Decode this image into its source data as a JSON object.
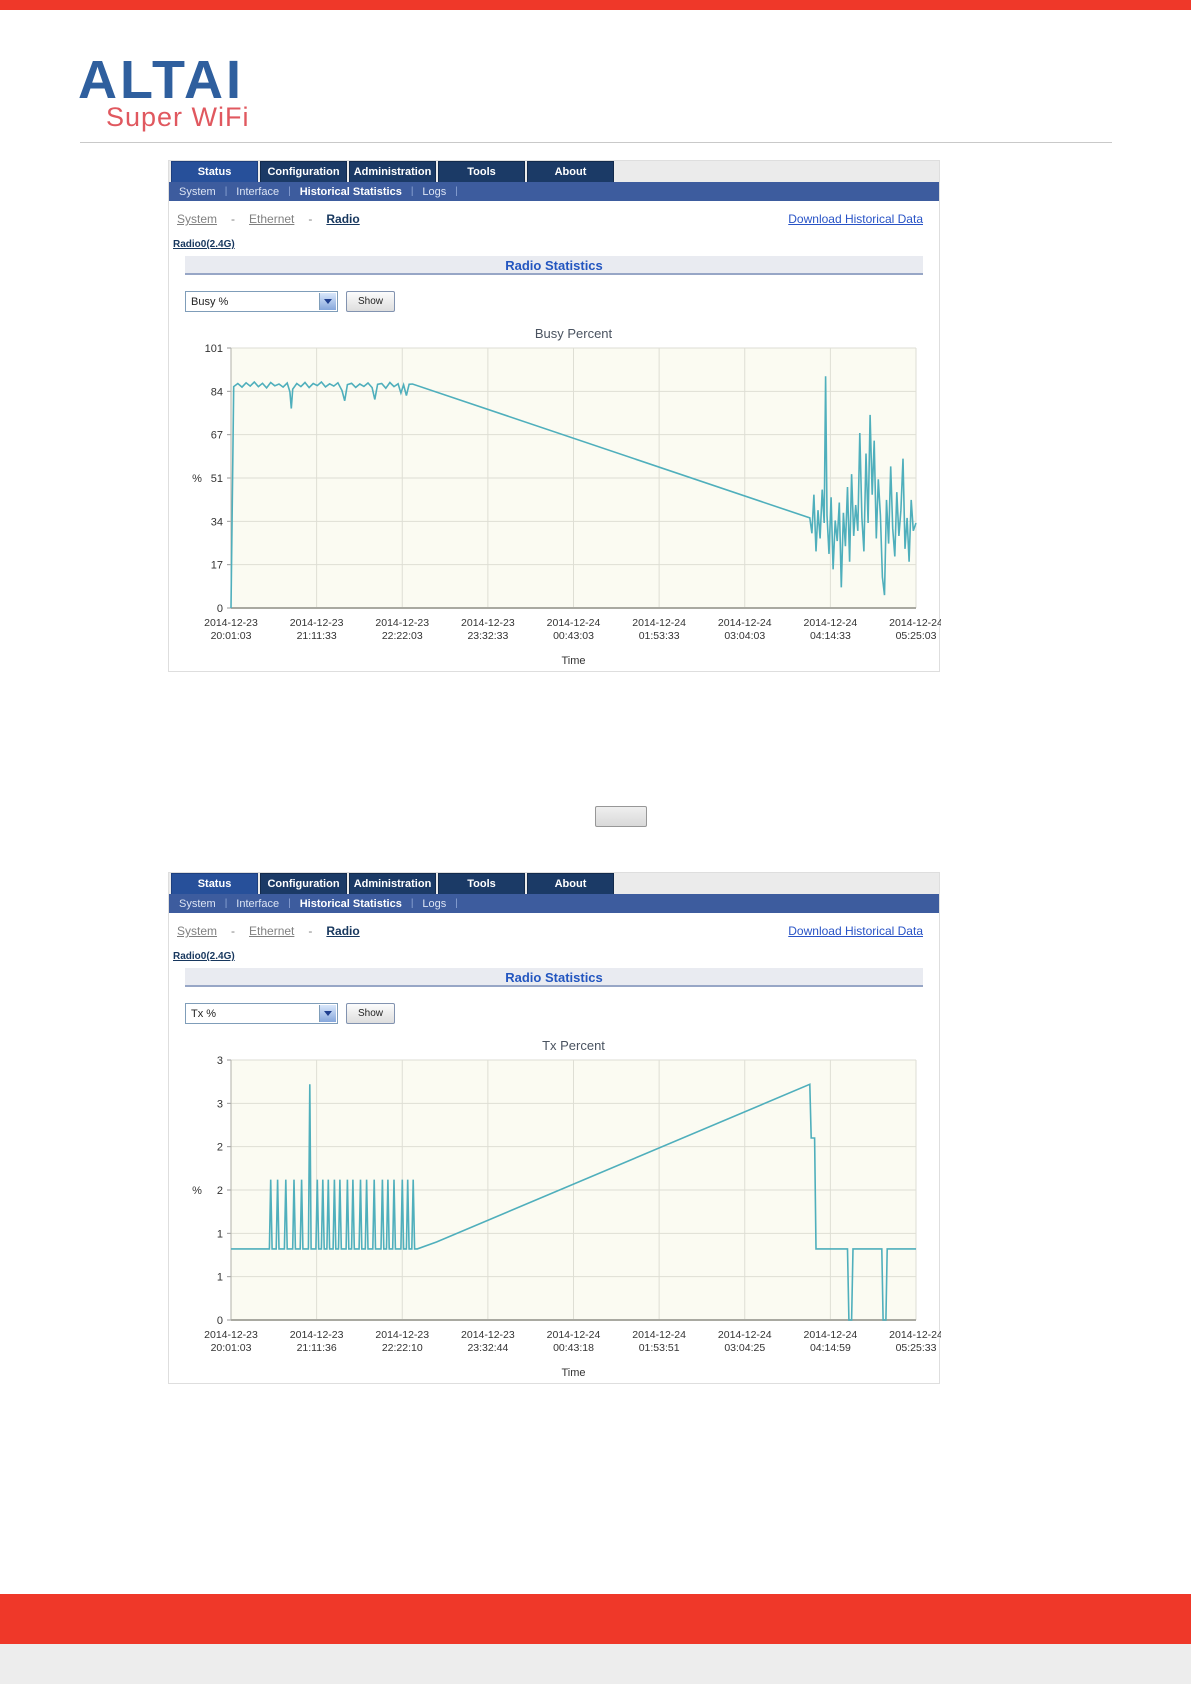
{
  "brand": {
    "logo_title": "ALTAI",
    "logo_subtitle": "Super WiFi",
    "logo_blue": "#2F5F9E",
    "logo_red": "#E0585F",
    "bar_red": "#EF3829"
  },
  "placeholder_button": {
    "label": ""
  },
  "panels": [
    {
      "tabs": [
        "Status",
        "Configuration",
        "Administration",
        "Tools",
        "About"
      ],
      "active_tab": "Status",
      "subnav": [
        "System",
        "Interface",
        "Historical Statistics",
        "Logs"
      ],
      "active_subnav": "Historical Statistics",
      "subnav_separator": "|",
      "breadcrumb": [
        "System",
        "Ethernet",
        "Radio"
      ],
      "breadcrumb_separator": "-",
      "download_link": "Download Historical Data",
      "radio_link": "Radio0(2.4G)",
      "section_title": "Radio Statistics",
      "metric_value": "Busy %",
      "show_label": "Show"
    },
    {
      "tabs": [
        "Status",
        "Configuration",
        "Administration",
        "Tools",
        "About"
      ],
      "active_tab": "Status",
      "subnav": [
        "System",
        "Interface",
        "Historical Statistics",
        "Logs"
      ],
      "active_subnav": "Historical Statistics",
      "subnav_separator": "|",
      "breadcrumb": [
        "System",
        "Ethernet",
        "Radio"
      ],
      "breadcrumb_separator": "-",
      "download_link": "Download Historical Data",
      "radio_link": "Radio0(2.4G)",
      "section_title": "Radio Statistics",
      "metric_value": "Tx %",
      "show_label": "Show"
    }
  ],
  "chart_data": [
    {
      "type": "line",
      "title": "Busy Percent",
      "xlabel": "Time",
      "ylabel": "%",
      "ylim": [
        0,
        101
      ],
      "grid": true,
      "legend": "none",
      "plot_bg": "#FBFBF2",
      "grid_color": "#DEDED4",
      "line_color": "#4FAFBC",
      "yticks": {
        "values": [
          101,
          84,
          67,
          51,
          34,
          17,
          0
        ],
        "labels": [
          "101",
          "84",
          "67",
          "51",
          "34",
          "17",
          "0"
        ]
      },
      "categories": [
        "2014-12-23 20:01:03",
        "2014-12-23 21:11:33",
        "2014-12-23 22:22:03",
        "2014-12-23 23:32:33",
        "2014-12-24 00:43:03",
        "2014-12-24 01:53:33",
        "2014-12-24 03:04:03",
        "2014-12-24 04:14:33",
        "2014-12-24 05:25:03"
      ],
      "series": [
        {
          "name": "Busy %",
          "points": [
            [
              0,
              0
            ],
            [
              0.004,
              86
            ],
            [
              0.01,
              87.2
            ],
            [
              0.016,
              85.8
            ],
            [
              0.022,
              87.5
            ],
            [
              0.028,
              86.2
            ],
            [
              0.034,
              87.8
            ],
            [
              0.04,
              86
            ],
            [
              0.046,
              87.3
            ],
            [
              0.052,
              85.5
            ],
            [
              0.058,
              87.6
            ],
            [
              0.064,
              86.3
            ],
            [
              0.07,
              87
            ],
            [
              0.076,
              85.8
            ],
            [
              0.082,
              87.4
            ],
            [
              0.086,
              84
            ],
            [
              0.088,
              77.5
            ],
            [
              0.09,
              85
            ],
            [
              0.096,
              87.2
            ],
            [
              0.102,
              86
            ],
            [
              0.108,
              87.6
            ],
            [
              0.114,
              85.6
            ],
            [
              0.12,
              87.2
            ],
            [
              0.126,
              86.4
            ],
            [
              0.132,
              87.8
            ],
            [
              0.138,
              85.9
            ],
            [
              0.144,
              87.1
            ],
            [
              0.15,
              86.2
            ],
            [
              0.156,
              87.5
            ],
            [
              0.162,
              84.5
            ],
            [
              0.166,
              80.5
            ],
            [
              0.17,
              86.8
            ],
            [
              0.176,
              87.3
            ],
            [
              0.182,
              85.7
            ],
            [
              0.188,
              87
            ],
            [
              0.194,
              86.1
            ],
            [
              0.2,
              87.4
            ],
            [
              0.206,
              85.6
            ],
            [
              0.21,
              81
            ],
            [
              0.214,
              86.9
            ],
            [
              0.22,
              87.2
            ],
            [
              0.226,
              85.4
            ],
            [
              0.232,
              87.6
            ],
            [
              0.238,
              86
            ],
            [
              0.244,
              87.1
            ],
            [
              0.248,
              83.5
            ],
            [
              0.252,
              86.7
            ],
            [
              0.256,
              82.5
            ],
            [
              0.26,
              86.9
            ],
            [
              0.265,
              87
            ],
            [
              0.845,
              35
            ],
            [
              0.848,
              29
            ],
            [
              0.851,
              44
            ],
            [
              0.854,
              22
            ],
            [
              0.857,
              38
            ],
            [
              0.86,
              27
            ],
            [
              0.863,
              46
            ],
            [
              0.866,
              33
            ],
            [
              0.868,
              90
            ],
            [
              0.87,
              36
            ],
            [
              0.873,
              21
            ],
            [
              0.876,
              43
            ],
            [
              0.879,
              15
            ],
            [
              0.882,
              34
            ],
            [
              0.885,
              26
            ],
            [
              0.888,
              41
            ],
            [
              0.891,
              8
            ],
            [
              0.894,
              37
            ],
            [
              0.897,
              24
            ],
            [
              0.9,
              47
            ],
            [
              0.903,
              18
            ],
            [
              0.906,
              52
            ],
            [
              0.909,
              28
            ],
            [
              0.912,
              40
            ],
            [
              0.915,
              30
            ],
            [
              0.918,
              68
            ],
            [
              0.921,
              35
            ],
            [
              0.924,
              22
            ],
            [
              0.927,
              60
            ],
            [
              0.93,
              33
            ],
            [
              0.933,
              75
            ],
            [
              0.936,
              44
            ],
            [
              0.939,
              65
            ],
            [
              0.942,
              27
            ],
            [
              0.945,
              50
            ],
            [
              0.948,
              36
            ],
            [
              0.951,
              12
            ],
            [
              0.954,
              5
            ],
            [
              0.957,
              42
            ],
            [
              0.96,
              25
            ],
            [
              0.963,
              55
            ],
            [
              0.966,
              31
            ],
            [
              0.969,
              20
            ],
            [
              0.972,
              45
            ],
            [
              0.975,
              28
            ],
            [
              0.978,
              38
            ],
            [
              0.981,
              58
            ],
            [
              0.984,
              23
            ],
            [
              0.987,
              35
            ],
            [
              0.99,
              18
            ],
            [
              0.993,
              42
            ],
            [
              0.996,
              30
            ],
            [
              1,
              33
            ]
          ]
        }
      ]
    },
    {
      "type": "line",
      "title": "Tx Percent",
      "xlabel": "Time",
      "ylabel": "%",
      "ylim": [
        0,
        3
      ],
      "grid": true,
      "legend": "none",
      "plot_bg": "#FBFBF2",
      "grid_color": "#DEDED4",
      "line_color": "#4FAFBC",
      "yticks": {
        "values": [
          3,
          2.5,
          2,
          1.5,
          1,
          0.5,
          0
        ],
        "labels": [
          "3",
          "3",
          "2",
          "2",
          "1",
          "1",
          "0"
        ]
      },
      "categories": [
        "2014-12-23 20:01:03",
        "2014-12-23 21:11:36",
        "2014-12-23 22:22:10",
        "2014-12-23 23:32:44",
        "2014-12-24 00:43:18",
        "2014-12-24 01:53:51",
        "2014-12-24 03:04:25",
        "2014-12-24 04:14:59",
        "2014-12-24 05:25:33"
      ],
      "series": [
        {
          "name": "Tx %",
          "points": [
            [
              0,
              0.82
            ],
            [
              0.05,
              0.82
            ],
            [
              0.056,
              0.82
            ],
            [
              0.058,
              1.62
            ],
            [
              0.06,
              0.82
            ],
            [
              0.066,
              0.82
            ],
            [
              0.068,
              1.62
            ],
            [
              0.07,
              0.82
            ],
            [
              0.078,
              0.82
            ],
            [
              0.08,
              1.62
            ],
            [
              0.082,
              0.82
            ],
            [
              0.09,
              0.82
            ],
            [
              0.092,
              1.62
            ],
            [
              0.094,
              0.82
            ],
            [
              0.101,
              0.82
            ],
            [
              0.103,
              1.62
            ],
            [
              0.105,
              0.82
            ],
            [
              0.113,
              0.82
            ],
            [
              0.115,
              2.72
            ],
            [
              0.117,
              0.82
            ],
            [
              0.124,
              0.82
            ],
            [
              0.126,
              1.62
            ],
            [
              0.128,
              0.82
            ],
            [
              0.132,
              0.82
            ],
            [
              0.134,
              1.62
            ],
            [
              0.136,
              0.82
            ],
            [
              0.14,
              0.82
            ],
            [
              0.142,
              1.62
            ],
            [
              0.144,
              0.82
            ],
            [
              0.149,
              0.82
            ],
            [
              0.151,
              1.62
            ],
            [
              0.153,
              0.82
            ],
            [
              0.157,
              0.82
            ],
            [
              0.159,
              1.62
            ],
            [
              0.161,
              0.82
            ],
            [
              0.168,
              0.82
            ],
            [
              0.17,
              1.62
            ],
            [
              0.172,
              0.82
            ],
            [
              0.176,
              0.82
            ],
            [
              0.178,
              1.62
            ],
            [
              0.18,
              0.82
            ],
            [
              0.187,
              0.82
            ],
            [
              0.189,
              1.62
            ],
            [
              0.191,
              0.82
            ],
            [
              0.196,
              0.82
            ],
            [
              0.198,
              1.62
            ],
            [
              0.2,
              0.82
            ],
            [
              0.207,
              0.82
            ],
            [
              0.209,
              1.62
            ],
            [
              0.211,
              0.82
            ],
            [
              0.219,
              0.82
            ],
            [
              0.221,
              1.62
            ],
            [
              0.223,
              0.82
            ],
            [
              0.227,
              0.82
            ],
            [
              0.229,
              1.62
            ],
            [
              0.231,
              0.82
            ],
            [
              0.236,
              0.82
            ],
            [
              0.238,
              1.62
            ],
            [
              0.24,
              0.82
            ],
            [
              0.248,
              0.82
            ],
            [
              0.25,
              1.62
            ],
            [
              0.252,
              0.82
            ],
            [
              0.256,
              0.82
            ],
            [
              0.258,
              1.62
            ],
            [
              0.26,
              0.82
            ],
            [
              0.264,
              0.82
            ],
            [
              0.266,
              1.62
            ],
            [
              0.268,
              0.82
            ],
            [
              0.272,
              0.82
            ],
            [
              0.3,
              0.9
            ],
            [
              0.845,
              2.72
            ],
            [
              0.847,
              2.1
            ],
            [
              0.852,
              2.1
            ],
            [
              0.854,
              0.82
            ],
            [
              0.9,
              0.82
            ],
            [
              0.902,
              0
            ],
            [
              0.906,
              0
            ],
            [
              0.908,
              0.82
            ],
            [
              0.95,
              0.82
            ],
            [
              0.952,
              0
            ],
            [
              0.956,
              0
            ],
            [
              0.958,
              0.82
            ],
            [
              1,
              0.82
            ]
          ]
        }
      ]
    }
  ]
}
